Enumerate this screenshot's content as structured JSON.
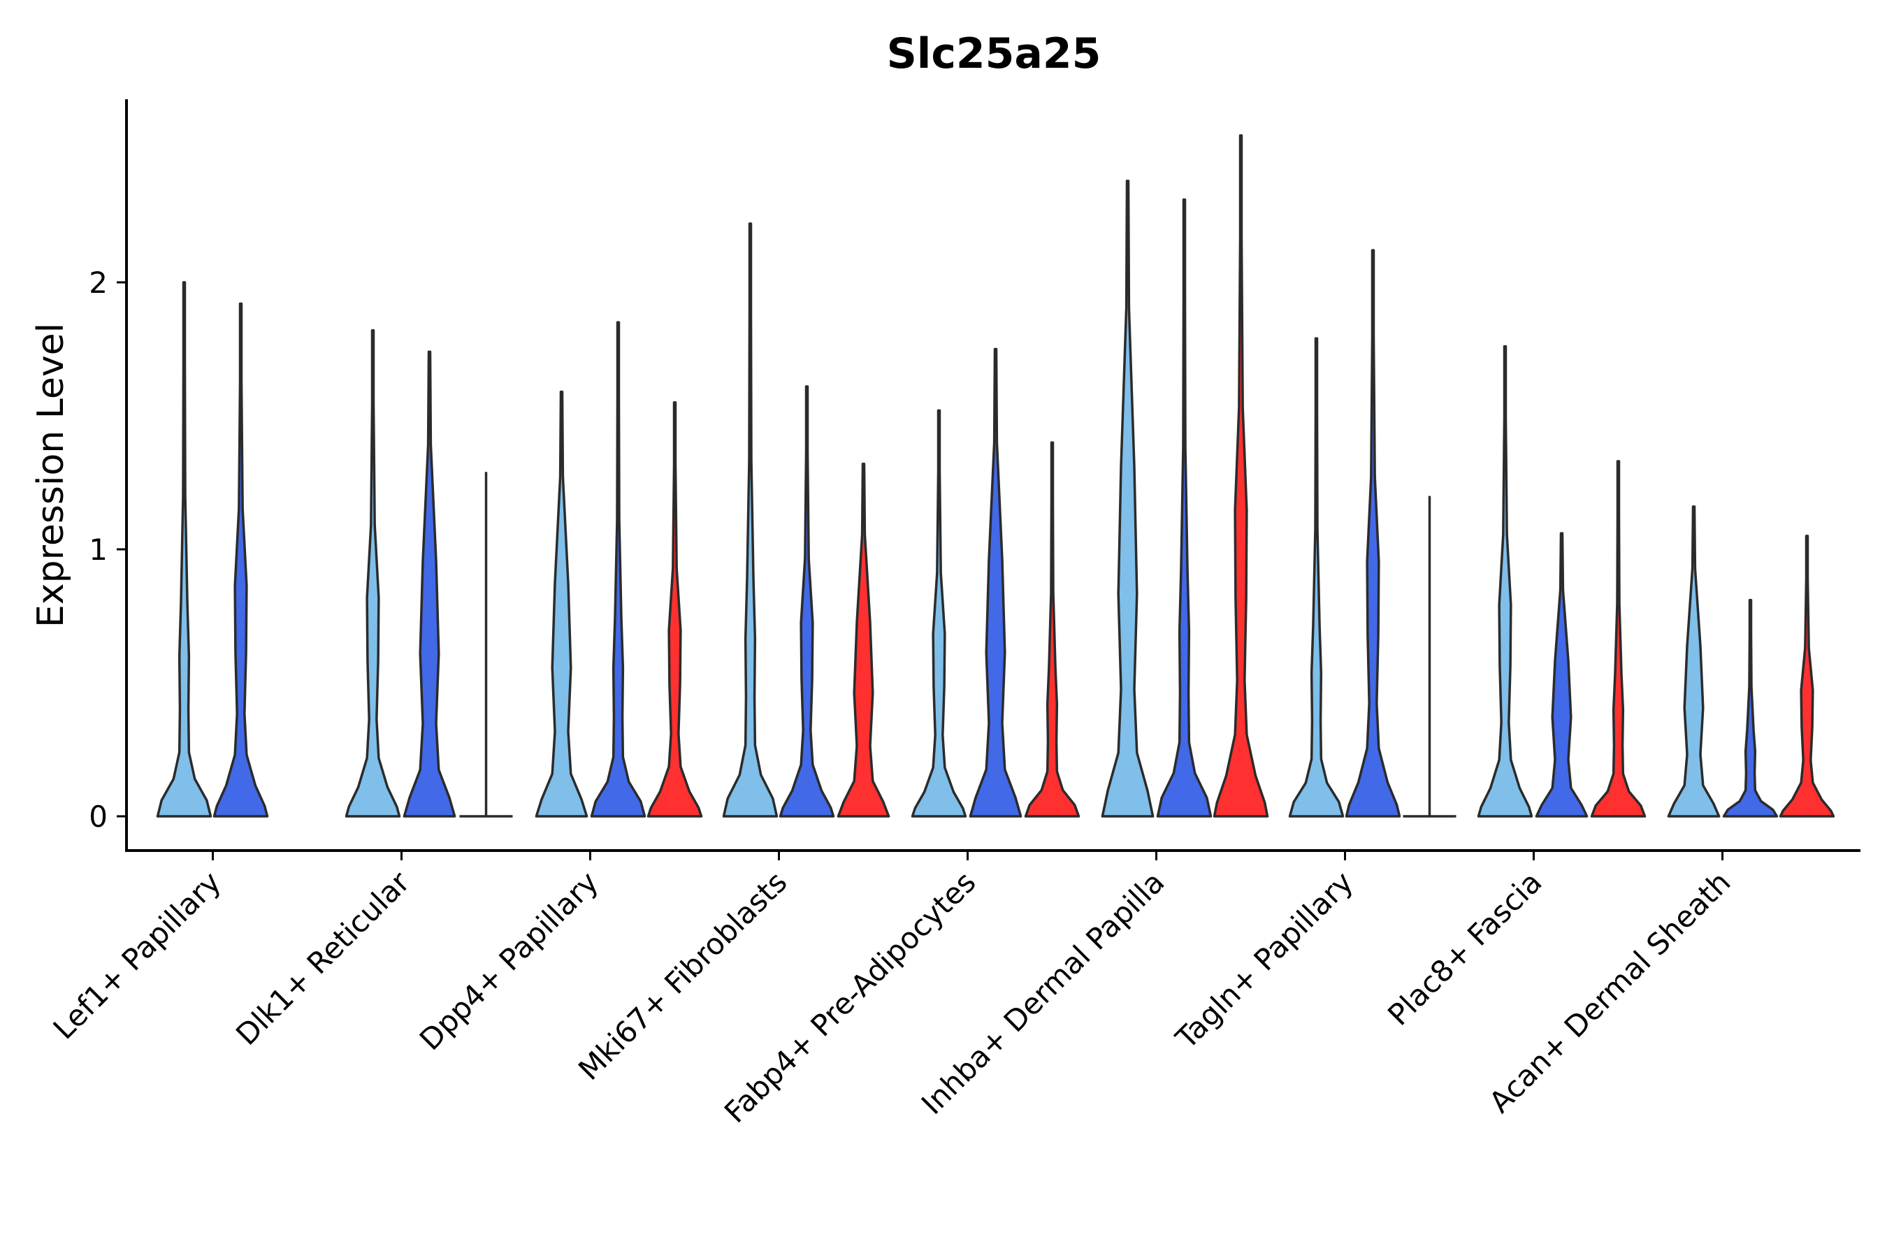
{
  "chart_data": {
    "type": "violin",
    "title": "Slc25a25",
    "xlabel": "",
    "ylabel": "Expression Level",
    "ylim": [
      -0.13,
      2.7
    ],
    "yticks": [
      0,
      1,
      2
    ],
    "ytick_labels": [
      "0",
      "1",
      "2"
    ],
    "grid": false,
    "legend": "none",
    "colors": {
      "light_blue": "#7FBFEA",
      "royal_blue": "#4169E8",
      "red": "#FF3030",
      "outline": "#2b2b2b"
    },
    "categories": [
      "Lef1+ Papillary",
      "Dlk1+ Reticular",
      "Dpp4+ Papillary",
      "Mki67+ Fibroblasts",
      "Fabp4+ Pre-Adipocytes",
      "Inhba+ Dermal Papilla",
      "Tagln+ Papillary",
      "Plac8+ Fascia",
      "Acan+ Dermal Sheath"
    ],
    "groups": [
      {
        "category": "Lef1+ Papillary",
        "violins": [
          {
            "color": "light_blue",
            "max": 2.0,
            "flat": false
          },
          {
            "color": "royal_blue",
            "max": 1.92,
            "flat": false
          }
        ]
      },
      {
        "category": "Dlk1+ Reticular",
        "violins": [
          {
            "color": "light_blue",
            "max": 1.82,
            "flat": false
          },
          {
            "color": "royal_blue",
            "max": 1.74,
            "flat": false
          },
          {
            "color": "red",
            "max": 1.29,
            "flat": true
          }
        ]
      },
      {
        "category": "Dpp4+ Papillary",
        "violins": [
          {
            "color": "light_blue",
            "max": 1.59,
            "flat": false
          },
          {
            "color": "royal_blue",
            "max": 1.85,
            "flat": false
          },
          {
            "color": "red",
            "max": 1.55,
            "flat": false
          }
        ]
      },
      {
        "category": "Mki67+ Fibroblasts",
        "violins": [
          {
            "color": "light_blue",
            "max": 2.22,
            "flat": false
          },
          {
            "color": "royal_blue",
            "max": 1.61,
            "flat": false
          },
          {
            "color": "red",
            "max": 1.32,
            "flat": false
          }
        ]
      },
      {
        "category": "Fabp4+ Pre-Adipocytes",
        "violins": [
          {
            "color": "light_blue",
            "max": 1.52,
            "flat": false
          },
          {
            "color": "royal_blue",
            "max": 1.75,
            "flat": false
          },
          {
            "color": "red",
            "max": 1.4,
            "flat": false
          }
        ]
      },
      {
        "category": "Inhba+ Dermal Papilla",
        "violins": [
          {
            "color": "light_blue",
            "max": 2.38,
            "flat": false
          },
          {
            "color": "royal_blue",
            "max": 2.31,
            "flat": false
          },
          {
            "color": "red",
            "max": 2.55,
            "flat": false
          }
        ]
      },
      {
        "category": "Tagln+ Papillary",
        "violins": [
          {
            "color": "light_blue",
            "max": 1.79,
            "flat": false
          },
          {
            "color": "royal_blue",
            "max": 2.12,
            "flat": false
          },
          {
            "color": "red",
            "max": 1.2,
            "flat": true
          }
        ]
      },
      {
        "category": "Plac8+ Fascia",
        "violins": [
          {
            "color": "light_blue",
            "max": 1.76,
            "flat": false
          },
          {
            "color": "royal_blue",
            "max": 1.06,
            "flat": false
          },
          {
            "color": "red",
            "max": 1.33,
            "flat": false
          }
        ]
      },
      {
        "category": "Acan+ Dermal Sheath",
        "violins": [
          {
            "color": "light_blue",
            "max": 1.16,
            "flat": false
          },
          {
            "color": "royal_blue",
            "max": 0.81,
            "flat": false
          },
          {
            "color": "red",
            "max": 1.05,
            "flat": false
          }
        ]
      }
    ]
  }
}
